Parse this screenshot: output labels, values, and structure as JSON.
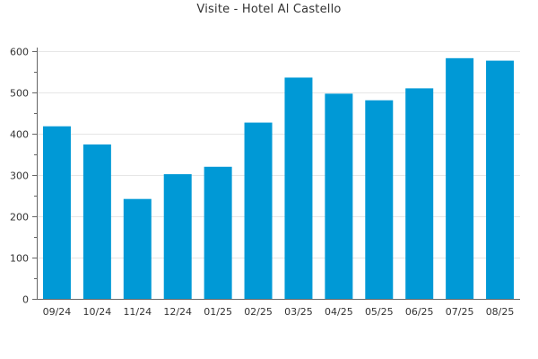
{
  "colors": {
    "bar": "#0099d6",
    "grid": "#e6e6e6",
    "axis": "#666666",
    "text": "#333333"
  },
  "chart_data": {
    "type": "bar",
    "title": "Visite - Hotel Al Castello",
    "xlabel": "",
    "ylabel": "",
    "categories": [
      "09/24",
      "10/24",
      "11/24",
      "12/24",
      "01/25",
      "02/25",
      "03/25",
      "04/25",
      "05/25",
      "06/25",
      "07/25",
      "08/25"
    ],
    "values": [
      418,
      374,
      242,
      302,
      320,
      427,
      536,
      497,
      481,
      510,
      583,
      577
    ],
    "ylim": [
      0,
      600
    ],
    "yticks": [
      0,
      100,
      200,
      300,
      400,
      500,
      600
    ],
    "grid": true,
    "legend": "none"
  }
}
